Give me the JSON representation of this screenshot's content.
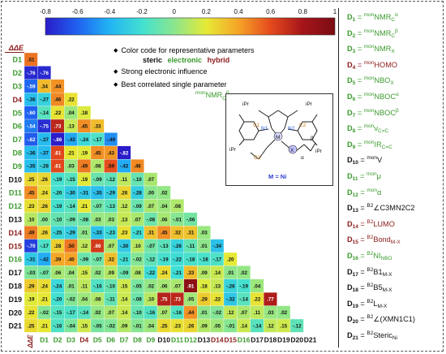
{
  "colorbar": {
    "ticks": [
      "-0.8",
      "-0.6",
      "-0.4",
      "-0.2",
      "0",
      "0.2",
      "0.4",
      "0.6",
      "0.8",
      "1"
    ],
    "stops": [
      "#2a1cc8",
      "#1f62f0",
      "#22b4f4",
      "#42e0d2",
      "#8ae68e",
      "#e6ea36",
      "#f5a427",
      "#e44a1c",
      "#a5151a",
      "#7a0c12"
    ]
  },
  "legend": {
    "line1": "Color code for representative parameters",
    "steric": "steric",
    "electronic": "electronic",
    "hybrid": "hybrid",
    "line2": "Strong electronic influence",
    "line3": "Best correlated single parameter",
    "best_param": "monNMRCβ",
    "steric_color": "#111111",
    "electronic_color": "#3a9a2c",
    "hybrid_color": "#8b1a1a"
  },
  "delta_label": "ΔΔE",
  "descriptors": [
    {
      "code": "D1",
      "type": "electronic",
      "top": "mon",
      "main": "NMR",
      "sub": "C",
      "sup": "α"
    },
    {
      "code": "D2",
      "type": "electronic",
      "top": "mon",
      "main": "NMR",
      "sub": "C",
      "sup": "β"
    },
    {
      "code": "D3",
      "type": "electronic",
      "top": "mon",
      "main": "NMR",
      "sub": "X",
      "sup": ""
    },
    {
      "code": "D4",
      "type": "hybrid",
      "top": "mon",
      "main": "HOMO",
      "sub": "",
      "sup": ""
    },
    {
      "code": "D5",
      "type": "electronic",
      "top": "mon",
      "main": "NBO",
      "sub": "X",
      "sup": ""
    },
    {
      "code": "D6",
      "type": "electronic",
      "top": "mon",
      "main": "NBOC",
      "sub": "",
      "sup": "α"
    },
    {
      "code": "D7",
      "type": "electronic",
      "top": "mon",
      "main": "NBOC",
      "sub": "",
      "sup": "β"
    },
    {
      "code": "D8",
      "type": "electronic",
      "top": "mon",
      "main": "ν",
      "sub": "C=C",
      "sup": ""
    },
    {
      "code": "D9",
      "type": "electronic",
      "top": "mon",
      "main": "IR",
      "sub": "C=C",
      "sup": ""
    },
    {
      "code": "D10",
      "type": "steric",
      "top": "mon",
      "main": "V",
      "sub": "",
      "sup": ""
    },
    {
      "code": "D11",
      "type": "electronic",
      "top": "mon",
      "main": "μ",
      "sub": "",
      "sup": ""
    },
    {
      "code": "D12",
      "type": "electronic",
      "top": "mon",
      "main": "α",
      "sub": "",
      "sup": ""
    },
    {
      "code": "D13",
      "type": "steric",
      "top": "B2",
      "main": "∠C3MN2C2",
      "sub": "",
      "sup": ""
    },
    {
      "code": "D14",
      "type": "hybrid",
      "top": "B2",
      "main": "LUMO",
      "sub": "",
      "sup": ""
    },
    {
      "code": "D15",
      "type": "hybrid",
      "top": "B2",
      "main": "Bond",
      "sub": "M-X",
      "sup": ""
    },
    {
      "code": "D16",
      "type": "electronic",
      "top": "B2",
      "main": "NI",
      "sub": "NBO",
      "sup": ""
    },
    {
      "code": "D17",
      "type": "steric",
      "top": "B2",
      "main": "B1",
      "sub": "M-X",
      "sup": ""
    },
    {
      "code": "D18",
      "type": "steric",
      "top": "B2",
      "main": "B5",
      "sub": "M-X",
      "sup": ""
    },
    {
      "code": "D19",
      "type": "steric",
      "top": "B2",
      "main": "L",
      "sub": "M-X",
      "sup": ""
    },
    {
      "code": "D20",
      "type": "steric",
      "top": "B2",
      "main": "∠(XMN1C1)",
      "sub": "",
      "sup": ""
    },
    {
      "code": "D21",
      "type": "steric",
      "top": "B2",
      "main": "Steric",
      "sub": "Ni",
      "sup": ""
    }
  ],
  "row_labels": [
    "D1",
    "D2",
    "D3",
    "D4",
    "D5",
    "D6",
    "D7",
    "D8",
    "D9",
    "D10",
    "D11",
    "D12",
    "D13",
    "D14",
    "D15",
    "D16",
    "D17",
    "D18",
    "D19",
    "D20",
    "D21"
  ],
  "col_labels": [
    "ΔΔE",
    "D1",
    "D2",
    "D3",
    "D4",
    "D5",
    "D6",
    "D7",
    "D8",
    "D9",
    "D10",
    "D11",
    "D12",
    "D13",
    "D14",
    "D15",
    "D16",
    "D17",
    "D18",
    "D19",
    "D20",
    "D21"
  ],
  "chart_data": {
    "type": "heatmap",
    "rows": [
      [
        0.51
      ],
      [
        -0.76,
        -0.76
      ],
      [
        -0.59,
        0.34,
        0.44
      ],
      [
        -0.36,
        -0.27,
        0.46,
        0.22
      ],
      [
        -0.6,
        -0.14,
        0.22,
        0.04,
        0.18
      ],
      [
        -0.54,
        -0.75,
        0.73,
        0.13,
        0.45,
        0.33
      ],
      [
        -0.62,
        -0.37,
        -0.86,
        -0.43,
        -0.24,
        -0.17,
        -0.49
      ],
      [
        -0.36,
        -0.37,
        0.61,
        0.21,
        0.19,
        0.45,
        0.43,
        -0.82
      ],
      [
        -0.35,
        -0.28,
        0.61,
        0.03,
        0.49,
        0.08,
        0.59,
        -0.42,
        0.46
      ],
      [
        0.25,
        0.26,
        -0.19,
        -0.15,
        0.19,
        -0.09,
        -0.12,
        0.11,
        -0.1,
        0.07
      ],
      [
        0.45,
        0.24,
        -0.2,
        -0.3,
        -0.31,
        -0.35,
        -0.29,
        0.26,
        -0.28,
        0.0,
        0.02
      ],
      [
        0.23,
        0.26,
        -0.19,
        -0.14,
        0.21,
        -0.07,
        -0.13,
        0.12,
        -0.09,
        0.07,
        0.04,
        0.08
      ],
      [
        0.1,
        -0.0,
        -0.1,
        -0.09,
        -0.08,
        0.03,
        0.03,
        0.13,
        0.07,
        -0.08,
        0.06,
        -0.01,
        -0.06
      ],
      [
        0.49,
        0.26,
        -0.25,
        -0.29,
        0.01,
        -0.33,
        -0.23,
        0.23,
        -0.21,
        0.31,
        0.45,
        0.32,
        0.31,
        0.03
      ],
      [
        -0.7,
        -0.17,
        0.28,
        0.5,
        0.12,
        0.66,
        0.07,
        -0.3,
        0.1,
        -0.07,
        -0.13,
        -0.26,
        -0.11,
        0.01,
        -0.34
      ],
      [
        -0.31,
        -0.42,
        0.39,
        0.4,
        -0.09,
        -0.07,
        0.32,
        -0.21,
        -0.02,
        -0.12,
        -0.19,
        -0.22,
        -0.18,
        -0.18,
        -0.17,
        0.2
      ],
      [
        -0.03,
        -0.07,
        0.06,
        0.04,
        0.15,
        0.02,
        0.09,
        -0.09,
        0.08,
        -0.22,
        0.24,
        -0.21,
        0.33,
        0.09,
        0.14,
        0.01,
        0.02
      ],
      [
        0.29,
        0.24,
        -0.24,
        0.01,
        0.11,
        -0.16,
        -0.1,
        0.15,
        -0.05,
        0.02,
        0.06,
        0.07,
        0.91,
        0.18,
        0.13,
        -0.26,
        -0.19,
        0.04
      ],
      [
        0.19,
        0.21,
        -0.2,
        -0.02,
        0.04,
        0.08,
        -0.11,
        0.14,
        -0.08,
        0.1,
        0.75,
        0.73,
        0.05,
        0.29,
        0.22,
        -0.32,
        -0.14,
        0.22,
        0.77
      ],
      [
        0.22,
        -0.02,
        -0.15,
        -0.17,
        -0.14,
        0.02,
        0.07,
        0.14,
        -0.1,
        -0.16,
        0.07,
        -0.16,
        0.44,
        0.01,
        -0.02,
        0.12,
        0.07,
        0.11,
        0.03,
        0.02
      ],
      [
        0.25,
        0.21,
        -0.16,
        -0.04,
        0.15,
        -0.05,
        -0.02,
        0.09,
        -0.01,
        0.04,
        0.25,
        0.23,
        0.26,
        0.09,
        0.05,
        -0.01,
        0.14,
        -0.14,
        0.12,
        0.15,
        -0.12
      ]
    ]
  },
  "molecule": {
    "labels": {
      "ipr1": "iPr",
      "ipr2": "iPr",
      "ipr3": "iPr",
      "ipr4": "iPr",
      "c1": "C1",
      "c2": "C2",
      "c3": "C3",
      "n1": "N1",
      "n2": "N2",
      "m": "M",
      "x": "X",
      "alpha": "α",
      "beta": "β"
    },
    "metal_note": "M = Ni"
  }
}
